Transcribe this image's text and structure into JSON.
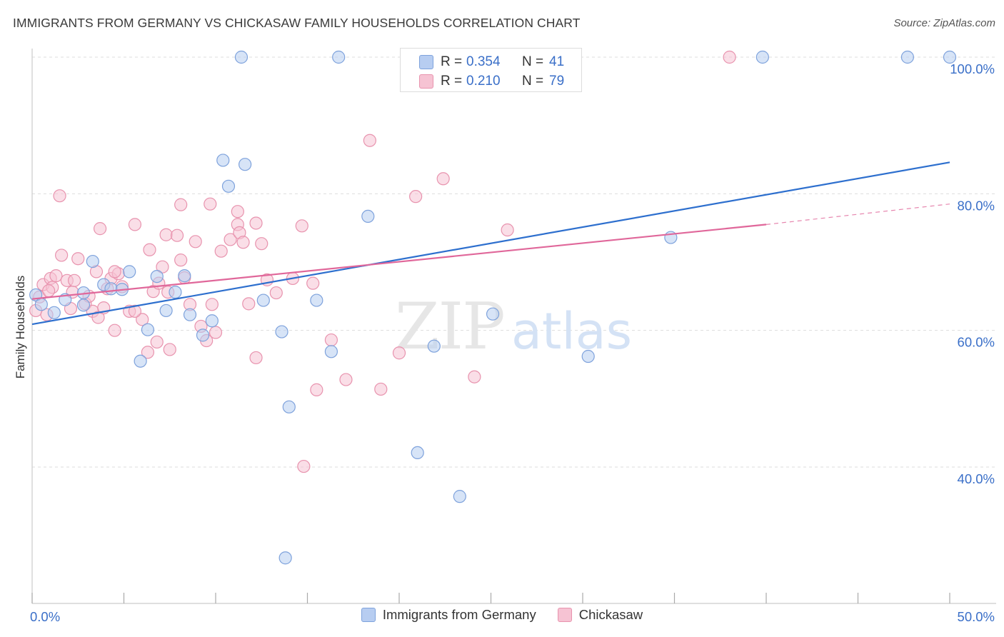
{
  "header": {
    "title": "IMMIGRANTS FROM GERMANY VS CHICKASAW FAMILY HOUSEHOLDS CORRELATION CHART",
    "source": "Source: ZipAtlas.com"
  },
  "stats": {
    "row1": {
      "r_label": "R = ",
      "r_value": "0.354",
      "n_label": "N = ",
      "n_value": "41"
    },
    "row2": {
      "r_label": "R = ",
      "r_value": "0.210",
      "n_label": "N = ",
      "n_value": "79"
    }
  },
  "legend": {
    "series1": "Immigrants from Germany",
    "series2": "Chickasaw"
  },
  "watermark": {
    "zip": "ZIP",
    "atlas": "atlas"
  },
  "colors": {
    "blue_fill": "#b7cdf1",
    "blue_stroke": "#7ea2dc",
    "blue_line": "#2d6fce",
    "pink_fill": "#f6c3d3",
    "pink_stroke": "#e893ae",
    "pink_line": "#e0679a",
    "tick_label": "#3a6fc8",
    "grid": "#dddddd"
  },
  "chart_data": {
    "type": "scatter",
    "title": "IMMIGRANTS FROM GERMANY VS CHICKASAW FAMILY HOUSEHOLDS CORRELATION CHART",
    "xlabel": "",
    "ylabel": "Family Households",
    "xlim": [
      0,
      50
    ],
    "ylim": [
      20,
      102
    ],
    "x_tick_labels": [
      {
        "value": 0,
        "label": "0.0%"
      },
      {
        "value": 50,
        "label": "50.0%"
      }
    ],
    "y_tick_labels": [
      {
        "value": 100,
        "label": "100.0%"
      },
      {
        "value": 80,
        "label": "80.0%"
      },
      {
        "value": 60,
        "label": "60.0%"
      },
      {
        "value": 40,
        "label": "40.0%"
      }
    ],
    "y_gridlines": [
      40,
      60,
      80,
      100
    ],
    "x_minor_ticks": [
      0,
      5,
      10,
      15,
      20,
      25,
      30,
      35,
      40,
      45,
      50
    ],
    "series": [
      {
        "name": "Immigrants from Germany",
        "color": "blue",
        "points": [
          [
            0.2,
            65.2
          ],
          [
            0.5,
            63.8
          ],
          [
            1.2,
            62.6
          ],
          [
            1.8,
            64.5
          ],
          [
            2.8,
            63.7
          ],
          [
            2.8,
            65.5
          ],
          [
            3.3,
            70.1
          ],
          [
            3.9,
            66.7
          ],
          [
            4.3,
            66.1
          ],
          [
            4.9,
            66.0
          ],
          [
            5.3,
            68.6
          ],
          [
            5.9,
            55.5
          ],
          [
            6.3,
            60.1
          ],
          [
            6.8,
            67.9
          ],
          [
            7.3,
            62.9
          ],
          [
            7.8,
            65.6
          ],
          [
            8.3,
            68.0
          ],
          [
            8.6,
            62.3
          ],
          [
            9.3,
            59.3
          ],
          [
            9.8,
            61.4
          ],
          [
            10.4,
            84.9
          ],
          [
            10.7,
            81.1
          ],
          [
            11.6,
            84.3
          ],
          [
            12.6,
            64.4
          ],
          [
            13.6,
            59.8
          ],
          [
            14.0,
            48.8
          ],
          [
            15.5,
            64.4
          ],
          [
            16.3,
            56.9
          ],
          [
            18.3,
            76.7
          ],
          [
            21.0,
            42.1
          ],
          [
            21.9,
            57.7
          ],
          [
            23.3,
            35.7
          ],
          [
            25.1,
            62.4
          ],
          [
            30.3,
            56.2
          ],
          [
            34.8,
            73.6
          ],
          [
            11.4,
            100.0
          ],
          [
            16.7,
            100.0
          ],
          [
            39.8,
            100.0
          ],
          [
            47.7,
            100.0
          ],
          [
            50.0,
            100.0
          ],
          [
            13.8,
            26.7
          ]
        ],
        "trendline": {
          "x": [
            0,
            50
          ],
          "y": [
            60.9,
            84.6
          ]
        }
      },
      {
        "name": "Chickasaw",
        "color": "pink",
        "points": [
          [
            0.2,
            62.9
          ],
          [
            0.4,
            64.9
          ],
          [
            0.6,
            66.7
          ],
          [
            0.8,
            62.3
          ],
          [
            1.0,
            67.6
          ],
          [
            1.1,
            66.3
          ],
          [
            1.3,
            68.0
          ],
          [
            1.6,
            71.0
          ],
          [
            1.9,
            67.3
          ],
          [
            2.2,
            65.6
          ],
          [
            2.3,
            67.3
          ],
          [
            2.5,
            70.5
          ],
          [
            2.9,
            63.9
          ],
          [
            3.1,
            65.0
          ],
          [
            3.3,
            62.8
          ],
          [
            3.5,
            68.6
          ],
          [
            3.6,
            61.9
          ],
          [
            3.9,
            63.3
          ],
          [
            4.1,
            66.1
          ],
          [
            4.3,
            67.6
          ],
          [
            4.5,
            60.0
          ],
          [
            4.7,
            68.3
          ],
          [
            4.9,
            66.4
          ],
          [
            5.3,
            62.8
          ],
          [
            5.6,
            75.5
          ],
          [
            6.0,
            61.6
          ],
          [
            6.3,
            56.8
          ],
          [
            6.4,
            71.8
          ],
          [
            6.6,
            65.7
          ],
          [
            6.8,
            58.3
          ],
          [
            7.3,
            74.0
          ],
          [
            7.5,
            57.2
          ],
          [
            7.9,
            73.9
          ],
          [
            8.1,
            78.4
          ],
          [
            8.3,
            67.7
          ],
          [
            8.6,
            63.8
          ],
          [
            8.9,
            73.0
          ],
          [
            9.2,
            60.6
          ],
          [
            9.7,
            78.5
          ],
          [
            10.0,
            59.7
          ],
          [
            10.3,
            71.6
          ],
          [
            10.8,
            73.3
          ],
          [
            11.2,
            75.5
          ],
          [
            11.3,
            74.3
          ],
          [
            11.5,
            72.9
          ],
          [
            11.8,
            63.9
          ],
          [
            12.2,
            75.7
          ],
          [
            12.5,
            72.7
          ],
          [
            12.8,
            67.4
          ],
          [
            13.3,
            65.5
          ],
          [
            14.2,
            67.6
          ],
          [
            14.7,
            75.3
          ],
          [
            15.3,
            66.9
          ],
          [
            15.5,
            51.3
          ],
          [
            16.3,
            58.6
          ],
          [
            17.1,
            52.8
          ],
          [
            18.4,
            87.8
          ],
          [
            19.0,
            51.4
          ],
          [
            20.0,
            56.7
          ],
          [
            20.9,
            79.6
          ],
          [
            22.4,
            82.2
          ],
          [
            24.1,
            53.2
          ],
          [
            25.9,
            74.7
          ],
          [
            14.8,
            40.1
          ],
          [
            1.5,
            79.7
          ],
          [
            5.6,
            62.8
          ],
          [
            7.1,
            69.3
          ],
          [
            7.4,
            65.6
          ],
          [
            9.8,
            63.8
          ],
          [
            11.2,
            77.4
          ],
          [
            12.2,
            56.0
          ],
          [
            0.9,
            65.8
          ],
          [
            2.1,
            63.2
          ],
          [
            3.7,
            74.9
          ],
          [
            6.9,
            66.9
          ],
          [
            8.1,
            70.3
          ],
          [
            9.5,
            58.5
          ],
          [
            38.0,
            100.0
          ],
          [
            4.5,
            68.6
          ]
        ],
        "trendline": {
          "x": [
            0,
            40
          ],
          "y": [
            64.6,
            75.5
          ],
          "dashed_extension": {
            "x": [
              40,
              50
            ],
            "y": [
              75.5,
              78.5
            ]
          }
        }
      }
    ],
    "legend_position": "top-center"
  }
}
